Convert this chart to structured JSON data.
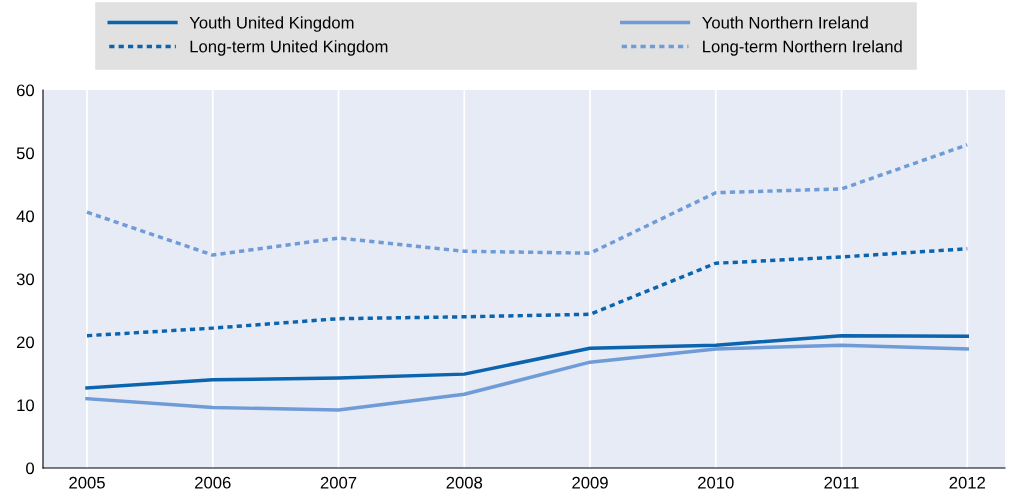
{
  "chart_data": {
    "type": "line",
    "x": [
      2005,
      2006,
      2007,
      2008,
      2009,
      2010,
      2011,
      2012
    ],
    "series": [
      {
        "name": "Youth United Kingdom",
        "color": "#0b64ae",
        "line_style": "solid",
        "values": [
          12.7,
          14.0,
          14.3,
          14.9,
          19.0,
          19.5,
          21.0,
          20.9
        ]
      },
      {
        "name": "Long-term United Kingdom",
        "color": "#0b64ae",
        "line_style": "dotted",
        "values": [
          21.0,
          22.2,
          23.7,
          24.0,
          24.4,
          32.5,
          33.5,
          34.8
        ]
      },
      {
        "name": "Youth Northern Ireland",
        "color": "#6f9bd6",
        "line_style": "solid",
        "values": [
          11.0,
          9.6,
          9.2,
          11.7,
          16.8,
          18.9,
          19.5,
          18.9
        ]
      },
      {
        "name": "Long-term Northern Ireland",
        "color": "#6f9bd6",
        "line_style": "dotted",
        "values": [
          40.6,
          33.8,
          36.5,
          34.4,
          34.1,
          43.7,
          44.3,
          51.3
        ]
      }
    ],
    "xlim": [
      2004.65,
      2012.3
    ],
    "xticks": [
      2005,
      2006,
      2007,
      2008,
      2009,
      2010,
      2011,
      2012
    ],
    "ylim": [
      0,
      60
    ],
    "yticks": [
      0,
      10,
      20,
      30,
      40,
      50,
      60
    ],
    "grid": "x",
    "legend": "top",
    "marker": "none"
  }
}
